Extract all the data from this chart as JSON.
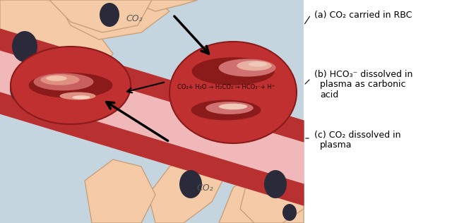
{
  "bg_color": "#ffffff",
  "cell_color": "#f5cba7",
  "cell_outline": "#c8a07a",
  "blue_bg": "#c5d5e0",
  "vessel_pink": "#e8a0a0",
  "plasma_pink": "#f0b8b8",
  "vessel_dark_red": "#b83030",
  "rbc_red": "#c03030",
  "rbc_dark": "#8b1a1a",
  "rbc_highlight": "#e8a0a0",
  "nucleus_color": "#2a2a3a",
  "equation": "CO₂+ H₂O → H₂CO₃ → HCO₃⁻+ H⁺",
  "label_a": "(a) CO₂ carried in RBC",
  "label_b_1": "(b) HCO₃⁻ dissolved in",
  "label_b_2": "plasma as carbonic",
  "label_b_3": "acid",
  "label_c_1": "(c) CO₂ dissolved in",
  "label_c_2": "plasma",
  "co2_top": "CO₂",
  "co2_bottom": "CO₂",
  "font_size": 9
}
